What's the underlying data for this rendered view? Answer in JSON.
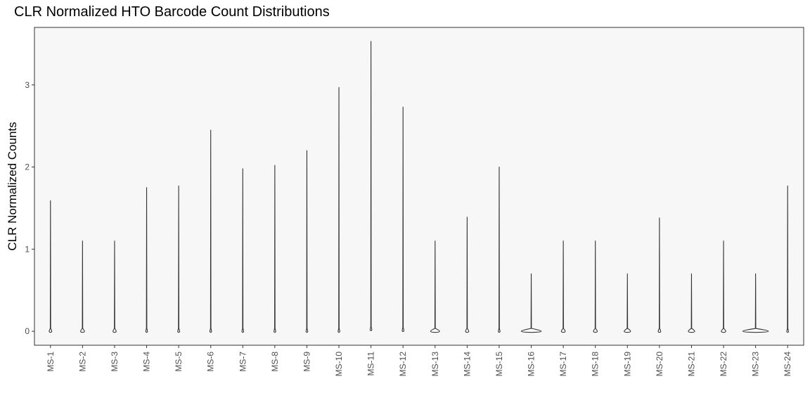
{
  "chart_data": {
    "type": "violin",
    "title": "CLR Normalized HTO Barcode Count Distributions",
    "xlabel": "",
    "ylabel": "CLR Normalized Counts",
    "ylim": [
      -0.17,
      3.7
    ],
    "yticks": [
      0,
      1,
      2,
      3
    ],
    "grid": false,
    "background": "#f7f7f7",
    "categories": [
      "MS-1",
      "MS-2",
      "MS-3",
      "MS-4",
      "MS-5",
      "MS-6",
      "MS-7",
      "MS-8",
      "MS-9",
      "MS-10",
      "MS-11",
      "MS-12",
      "MS-13",
      "MS-14",
      "MS-15",
      "MS-16",
      "MS-17",
      "MS-18",
      "MS-19",
      "MS-20",
      "MS-21",
      "MS-22",
      "MS-23",
      "MS-24"
    ],
    "series": [
      {
        "min": [
          0,
          0,
          0,
          0,
          0,
          0,
          0,
          0,
          0,
          0,
          0.02,
          0.01,
          0,
          0,
          0,
          0,
          0,
          0,
          0,
          0,
          0,
          0,
          0,
          0
        ],
        "max": [
          1.59,
          1.1,
          1.1,
          1.75,
          1.77,
          2.45,
          1.98,
          2.02,
          2.2,
          2.97,
          3.53,
          2.73,
          1.1,
          1.39,
          2.0,
          0.7,
          1.1,
          1.1,
          0.7,
          1.38,
          0.7,
          1.1,
          0.7,
          1.77
        ],
        "width": [
          0.08,
          0.12,
          0.1,
          0.05,
          0.06,
          0.03,
          0.03,
          0.04,
          0.03,
          0.02,
          0.01,
          0.01,
          0.28,
          0.1,
          0.03,
          0.62,
          0.12,
          0.12,
          0.2,
          0.08,
          0.2,
          0.14,
          0.8,
          0.05
        ]
      }
    ]
  }
}
